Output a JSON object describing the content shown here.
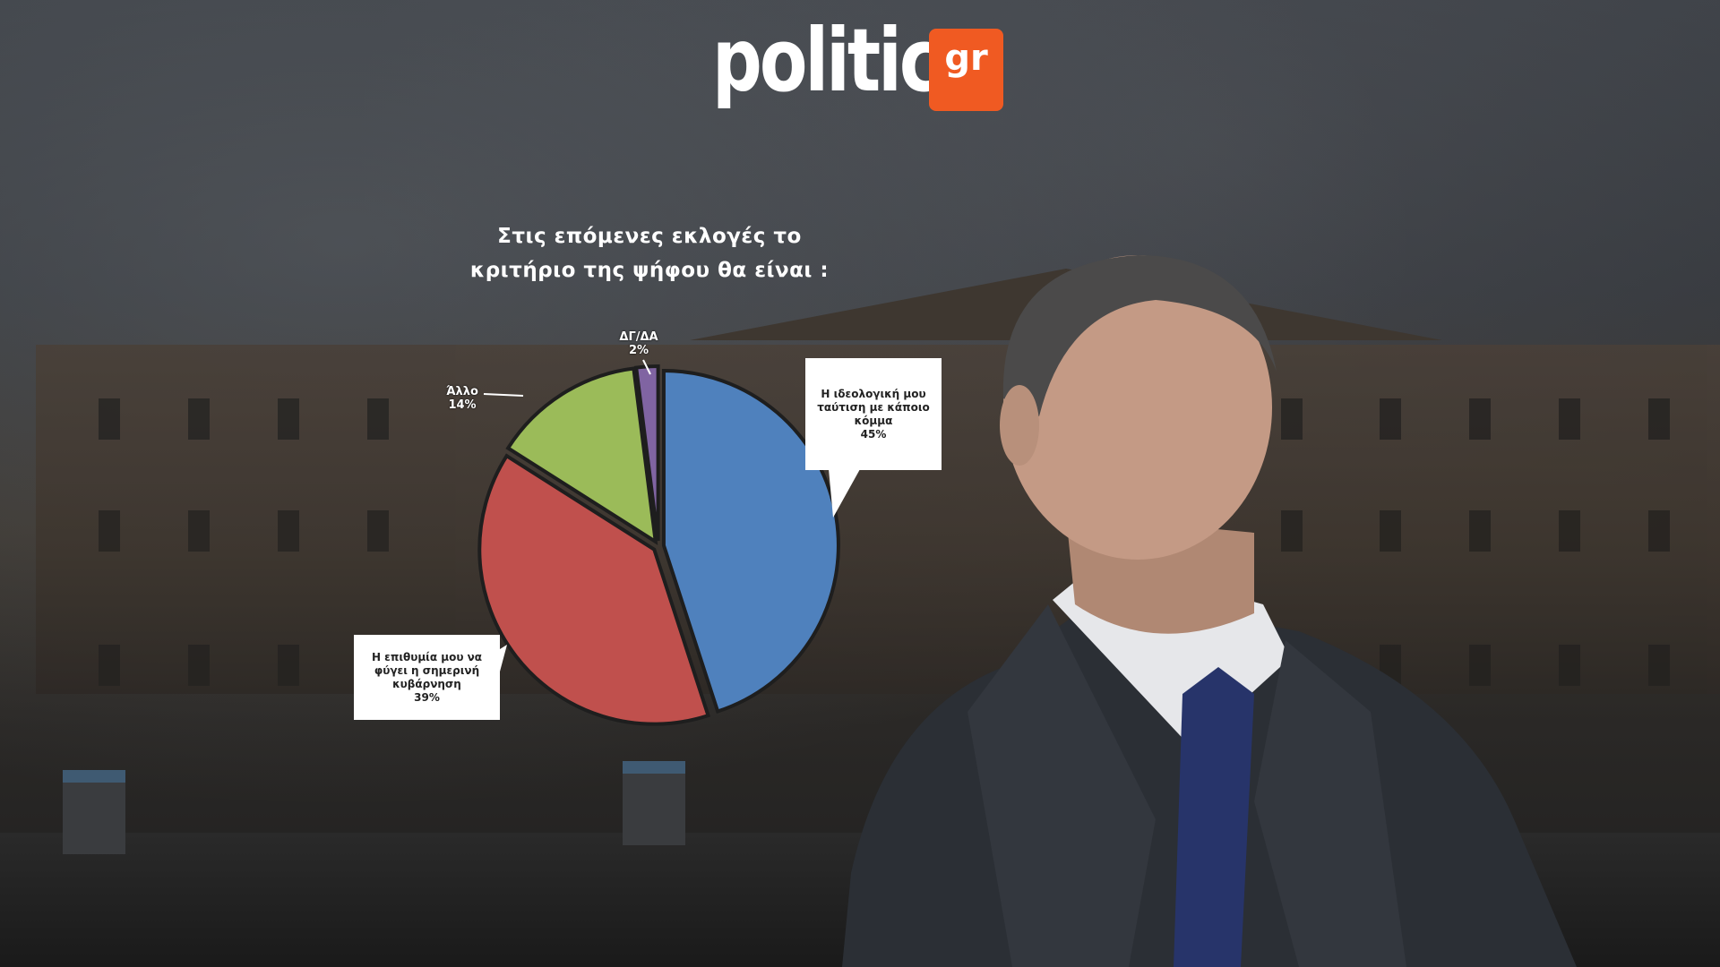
{
  "logo": {
    "word": "politic",
    "badge": "gr"
  },
  "colors": {
    "brand": "#f05a22",
    "slice_party": "#4f81bd",
    "slice_government": "#c0504d",
    "slice_other": "#9bbb59",
    "slice_dk": "#8064a2"
  },
  "chart_data": {
    "type": "pie",
    "title": "Στις επόμενες εκλογές το\nκριτήριο της ψήφου θα είναι :",
    "slices": [
      {
        "label": "Η ιδεολογική μου ταύτιση με κάποιο κόμμα",
        "value": 45,
        "display": "45%",
        "color": "#4f81bd"
      },
      {
        "label": "Η επιθυμία μου να φύγει η σημερινή κυβάρνηση",
        "value": 39,
        "display": "39%",
        "color": "#c0504d"
      },
      {
        "label": "Άλλο",
        "value": 14,
        "display": "14%",
        "color": "#9bbb59"
      },
      {
        "label": "ΔΓ/ΔΑ",
        "value": 2,
        "display": "2%",
        "color": "#8064a2"
      }
    ]
  },
  "labels": {
    "party_l1": "Η ιδεολογική μου",
    "party_l2": "ταύτιση με κάποιο",
    "party_l3": "κόμμα",
    "party_pct": "45%",
    "gov_l1": "Η επιθυμία μου να",
    "gov_l2": "φύγει η σημερινή",
    "gov_l3": "κυβάρνηση",
    "gov_pct": "39%",
    "other_l1": "Άλλο",
    "other_pct": "14%",
    "dk_l1": "ΔΓ/ΔΑ",
    "dk_pct": "2%"
  }
}
